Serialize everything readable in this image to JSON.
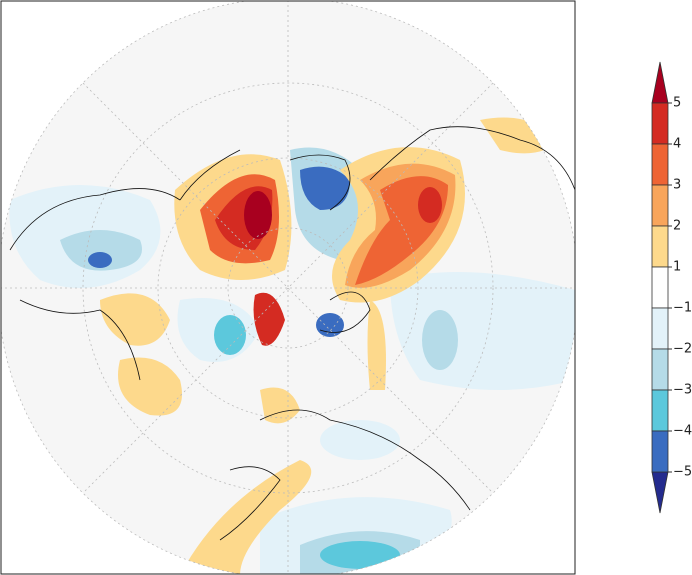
{
  "colorbar": {
    "levels": [
      5,
      4,
      3,
      2,
      1,
      {
        "value": -1,
        "label": "−1"
      },
      {
        "value": -2,
        "label": "−2"
      },
      {
        "value": -3,
        "label": "−3"
      },
      {
        "value": -4,
        "label": "−4"
      },
      {
        "value": -5,
        "label": "−5"
      }
    ],
    "colors": [
      "#a8001f",
      "#d42b22",
      "#ee6434",
      "#f8a55b",
      "#fdd98c",
      "#ffffff",
      "#e3f2f9",
      "#b5dbe8",
      "#5cc8dc",
      "#3a6cc0",
      "#242b8e"
    ]
  }
}
